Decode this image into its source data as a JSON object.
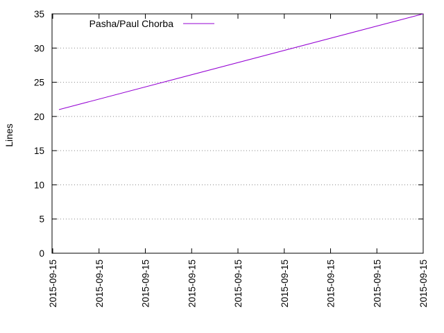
{
  "chart_data": {
    "type": "line",
    "title": "",
    "xlabel": "",
    "ylabel": "Lines",
    "ylim": [
      0,
      35
    ],
    "yticks": [
      0,
      5,
      10,
      15,
      20,
      25,
      30,
      35
    ],
    "xtick_labels": [
      "2015-09-15",
      "2015-09-15",
      "2015-09-15",
      "2015-09-15",
      "2015-09-15",
      "2015-09-15",
      "2015-09-15",
      "2015-09-15",
      "2015-09-15"
    ],
    "grid": "horizontal dotted",
    "legend_position": "top-left",
    "series": [
      {
        "name": "Pasha/Paul Chorba",
        "color": "#9400d3",
        "y_start": 21,
        "y_end": 35
      }
    ]
  }
}
